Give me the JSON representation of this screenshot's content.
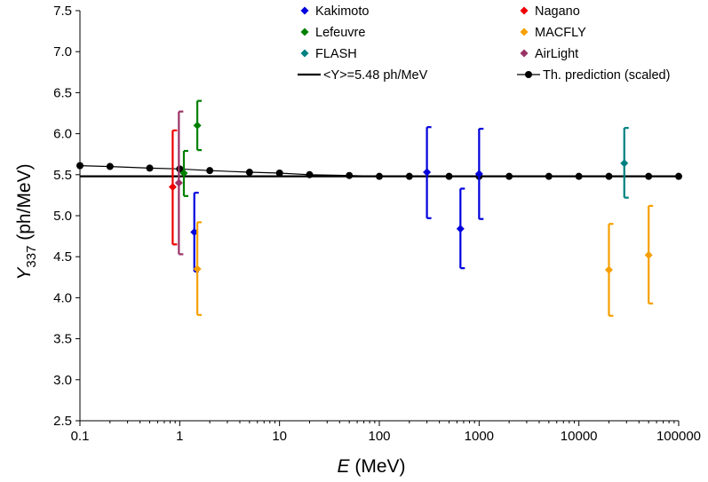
{
  "chart_data": {
    "type": "scatter",
    "xscale": "log",
    "xlim": [
      0.1,
      100000
    ],
    "ylim": [
      2.5,
      7.5
    ],
    "xticks": [
      0.1,
      1,
      10,
      100,
      1000,
      10000,
      100000
    ],
    "xtick_labels": [
      "0.1",
      "1",
      "10",
      "100",
      "1000",
      "10000",
      "100000"
    ],
    "yticks": [
      2.5,
      3.0,
      3.5,
      4.0,
      4.5,
      5.0,
      5.5,
      6.0,
      6.5,
      7.0,
      7.5
    ],
    "ytick_labels": [
      "2.5",
      "3.0",
      "3.5",
      "4.0",
      "4.5",
      "5.0",
      "5.5",
      "6.0",
      "6.5",
      "7.0",
      "7.5"
    ],
    "xlabel": {
      "symbol": "E",
      "unit": " (MeV)"
    },
    "ylabel": {
      "symbol": "Y",
      "subscript": "337",
      "unit": " (ph/MeV)"
    },
    "grid": false,
    "legend_position": "top-right",
    "series": [
      {
        "name": "Kakimoto",
        "color": "#0000dd",
        "marker": "diamond",
        "points": [
          {
            "x": 1.4,
            "y": 4.8,
            "ylow": 4.32,
            "yhigh": 5.28
          },
          {
            "x": 300,
            "y": 5.53,
            "ylow": 4.97,
            "yhigh": 6.08
          },
          {
            "x": 650,
            "y": 4.84,
            "ylow": 4.36,
            "yhigh": 5.33
          },
          {
            "x": 1000,
            "y": 5.51,
            "ylow": 4.96,
            "yhigh": 6.06
          }
        ]
      },
      {
        "name": "Nagano",
        "color": "#ee0000",
        "marker": "diamond",
        "points": [
          {
            "x": 0.85,
            "y": 5.35,
            "ylow": 4.65,
            "yhigh": 6.04
          }
        ]
      },
      {
        "name": "Lefeuvre",
        "color": "#008000",
        "marker": "diamond",
        "points": [
          {
            "x": 1.5,
            "y": 6.1,
            "ylow": 5.8,
            "yhigh": 6.4
          },
          {
            "x": 1.1,
            "y": 5.52,
            "ylow": 5.24,
            "yhigh": 5.79
          }
        ]
      },
      {
        "name": "MACFLY",
        "color": "#f5a000",
        "marker": "diamond",
        "points": [
          {
            "x": 1.5,
            "y": 4.35,
            "ylow": 3.79,
            "yhigh": 4.92
          },
          {
            "x": 20000,
            "y": 4.34,
            "ylow": 3.78,
            "yhigh": 4.9
          },
          {
            "x": 50000,
            "y": 4.52,
            "ylow": 3.93,
            "yhigh": 5.12
          }
        ]
      },
      {
        "name": "FLASH",
        "color": "#008080",
        "marker": "diamond",
        "points": [
          {
            "x": 28500,
            "y": 5.64,
            "ylow": 5.22,
            "yhigh": 6.07
          }
        ]
      },
      {
        "name": "AirLight",
        "color": "#993366",
        "marker": "diamond",
        "points": [
          {
            "x": 0.98,
            "y": 5.4,
            "ylow": 4.53,
            "yhigh": 6.27
          }
        ]
      }
    ],
    "constant_line": {
      "name": "<Y>=5.48 ph/MeV",
      "y": 5.48,
      "color": "#000000"
    },
    "prediction": {
      "name": "Th. prediction (scaled)",
      "color": "#000000",
      "x": [
        0.1,
        0.2,
        0.5,
        1,
        2,
        5,
        10,
        20,
        50,
        100,
        200,
        500,
        1000,
        2000,
        5000,
        10000,
        20000,
        50000,
        100000
      ],
      "y": [
        5.61,
        5.6,
        5.58,
        5.57,
        5.55,
        5.53,
        5.52,
        5.5,
        5.49,
        5.48,
        5.48,
        5.48,
        5.48,
        5.48,
        5.48,
        5.48,
        5.48,
        5.48,
        5.48
      ]
    },
    "legend_order": [
      "Kakimoto",
      "Nagano",
      "Lefeuvre",
      "MACFLY",
      "FLASH",
      "AirLight",
      "<Y>=5.48 ph/MeV",
      "Th. prediction (scaled)"
    ]
  }
}
